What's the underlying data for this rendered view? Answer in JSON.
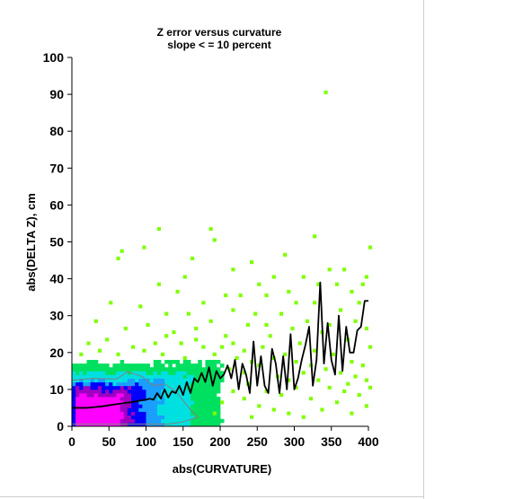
{
  "chart_data": {
    "type": "heatmap",
    "title": "Z error versus curvature",
    "subtitle": "slope < = 10 percent",
    "xlabel": "abs(CURVATURE)",
    "ylabel": "abs(DELTA Z), cm",
    "xlim": [
      0,
      400
    ],
    "ylim": [
      0,
      100
    ],
    "x_ticks": [
      "0",
      "50",
      "100",
      "150",
      "200",
      "250",
      "300",
      "350",
      "400"
    ],
    "y_ticks": [
      "0",
      "10",
      "20",
      "30",
      "40",
      "50",
      "60",
      "70",
      "80",
      "90",
      "100"
    ],
    "bin_size": {
      "x": 5,
      "y": 1
    },
    "colormap_hex": [
      "#7fff00",
      "#00e060",
      "#00e0e0",
      "#1a9fff",
      "#0000ff",
      "#a000c0",
      "#ff00ff"
    ],
    "density_regions": [
      {
        "level": 6,
        "x": [
          2,
          70
        ],
        "y": [
          0,
          9
        ]
      },
      {
        "level": 5,
        "x": [
          5,
          85
        ],
        "y": [
          0,
          11
        ]
      },
      {
        "level": 4,
        "x": [
          0,
          100
        ],
        "y": [
          0,
          12
        ]
      },
      {
        "level": 3,
        "x": [
          0,
          125
        ],
        "y": [
          0,
          13
        ]
      },
      {
        "level": 2,
        "x": [
          0,
          165
        ],
        "y": [
          0,
          15
        ]
      },
      {
        "level": 1,
        "x": [
          0,
          205
        ],
        "y": [
          0,
          18
        ]
      }
    ],
    "sparse_points": [
      [
        340,
        90
      ],
      [
        115,
        53
      ],
      [
        185,
        53
      ],
      [
        325,
        51
      ],
      [
        65,
        47
      ],
      [
        95,
        48
      ],
      [
        60,
        45
      ],
      [
        160,
        45
      ],
      [
        400,
        48
      ],
      [
        190,
        50
      ],
      [
        345,
        42
      ],
      [
        365,
        42
      ],
      [
        395,
        40
      ],
      [
        285,
        46
      ],
      [
        215,
        42
      ],
      [
        115,
        38
      ],
      [
        250,
        38
      ],
      [
        270,
        40
      ],
      [
        310,
        40
      ],
      [
        330,
        38
      ],
      [
        355,
        38
      ],
      [
        375,
        36
      ],
      [
        385,
        33
      ],
      [
        205,
        35
      ],
      [
        140,
        36
      ],
      [
        175,
        33
      ],
      [
        225,
        35
      ],
      [
        260,
        35
      ],
      [
        300,
        33
      ],
      [
        50,
        33
      ],
      [
        90,
        32
      ],
      [
        125,
        30
      ],
      [
        155,
        30
      ],
      [
        185,
        28
      ],
      [
        215,
        31
      ],
      [
        245,
        30
      ],
      [
        280,
        30
      ],
      [
        315,
        28
      ],
      [
        345,
        27
      ],
      [
        360,
        31
      ],
      [
        395,
        26
      ],
      [
        30,
        28
      ],
      [
        70,
        26
      ],
      [
        100,
        27
      ],
      [
        135,
        25
      ],
      [
        165,
        26
      ],
      [
        205,
        24
      ],
      [
        235,
        27
      ],
      [
        265,
        24
      ],
      [
        295,
        26
      ],
      [
        335,
        25
      ],
      [
        370,
        23
      ],
      [
        380,
        28
      ],
      [
        20,
        22
      ],
      [
        45,
        23
      ],
      [
        80,
        21
      ],
      [
        110,
        22
      ],
      [
        145,
        22
      ],
      [
        175,
        21
      ],
      [
        215,
        22
      ],
      [
        230,
        20
      ],
      [
        255,
        21
      ],
      [
        285,
        19
      ],
      [
        305,
        22
      ],
      [
        325,
        20
      ],
      [
        350,
        19
      ],
      [
        375,
        17
      ],
      [
        390,
        16
      ],
      [
        400,
        21
      ],
      [
        10,
        19
      ],
      [
        35,
        20
      ],
      [
        60,
        19
      ],
      [
        95,
        20
      ],
      [
        120,
        19
      ],
      [
        150,
        18
      ],
      [
        190,
        19
      ],
      [
        220,
        18
      ],
      [
        240,
        17
      ],
      [
        270,
        18
      ],
      [
        300,
        17
      ],
      [
        320,
        16
      ],
      [
        340,
        15
      ],
      [
        360,
        14
      ],
      [
        380,
        13
      ],
      [
        395,
        12
      ],
      [
        210,
        15
      ],
      [
        230,
        14
      ],
      [
        250,
        16
      ],
      [
        275,
        13
      ],
      [
        290,
        12
      ],
      [
        310,
        14
      ],
      [
        330,
        12
      ],
      [
        345,
        10
      ],
      [
        365,
        9
      ],
      [
        385,
        8
      ],
      [
        400,
        10
      ],
      [
        235,
        11
      ],
      [
        260,
        9
      ],
      [
        280,
        8
      ],
      [
        300,
        10
      ],
      [
        320,
        7
      ],
      [
        355,
        6
      ],
      [
        370,
        11
      ],
      [
        230,
        7
      ],
      [
        250,
        5
      ],
      [
        270,
        4
      ],
      [
        215,
        9
      ],
      [
        200,
        6
      ],
      [
        190,
        3
      ],
      [
        240,
        2
      ],
      [
        290,
        3
      ],
      [
        335,
        4
      ],
      [
        310,
        2
      ],
      [
        375,
        3
      ],
      [
        395,
        5
      ],
      [
        165,
        23
      ],
      [
        200,
        21
      ],
      [
        125,
        24
      ],
      [
        260,
        27
      ],
      [
        290,
        36
      ],
      [
        325,
        33
      ],
      [
        390,
        38
      ],
      [
        150,
        40
      ],
      [
        240,
        44
      ]
    ],
    "series": [
      {
        "name": "",
        "x": [
          0,
          10,
          20,
          30,
          40,
          50,
          60,
          70,
          80,
          90,
          100,
          105,
          110,
          115,
          120,
          125,
          130,
          135,
          140,
          145,
          150,
          155,
          160,
          165,
          170,
          175,
          180,
          185,
          190,
          195,
          200,
          205,
          210,
          215,
          220,
          225,
          230,
          235,
          240,
          245,
          250,
          255,
          260,
          265,
          270,
          275,
          280,
          285,
          290,
          295,
          300,
          305,
          310,
          315,
          320,
          325,
          330,
          335,
          340,
          345,
          350,
          355,
          360,
          365,
          370,
          375,
          380,
          385,
          390,
          395,
          400
        ],
        "y": [
          5,
          5,
          5,
          5.2,
          5.4,
          5.7,
          6,
          6.3,
          6.5,
          6.9,
          7.2,
          7.5,
          7.2,
          9,
          7.5,
          10,
          7.8,
          9.5,
          9,
          11,
          8.5,
          12,
          9,
          13,
          12,
          14.5,
          12,
          16,
          11,
          15,
          13,
          14,
          16.5,
          13,
          18,
          10,
          17,
          14,
          9,
          23,
          11,
          19,
          11,
          9,
          21,
          17,
          9,
          19,
          10,
          25,
          10,
          13,
          18,
          22,
          27,
          11,
          18,
          39,
          17,
          28,
          18,
          14,
          30,
          15,
          27,
          20,
          20,
          26,
          27,
          34,
          34
        ]
      }
    ],
    "colors": {
      "mean_line": "#000000",
      "contour": "#808080",
      "background": "#ffffff"
    }
  }
}
